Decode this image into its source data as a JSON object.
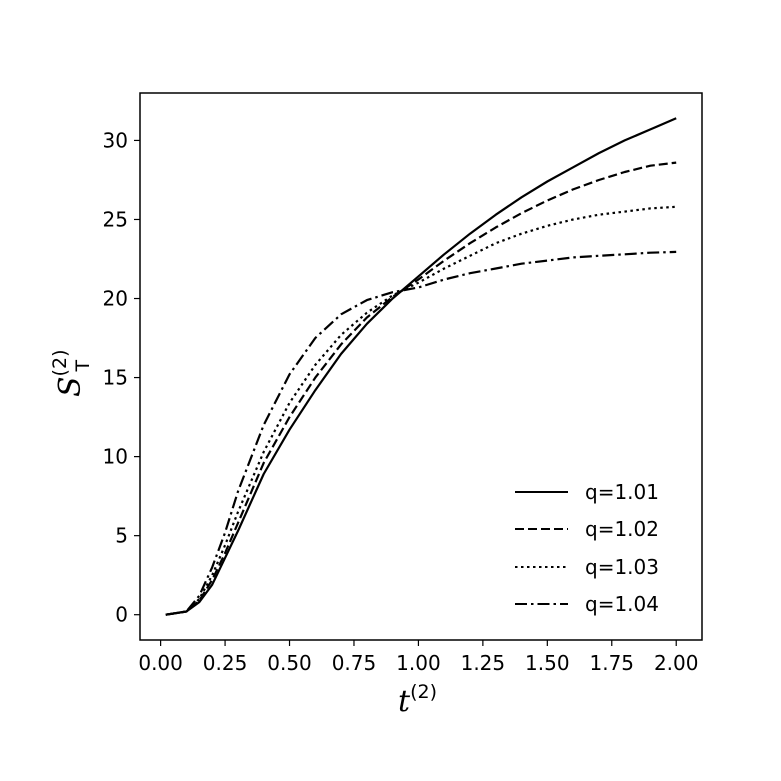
{
  "chart_data": {
    "type": "line",
    "xlabel": {
      "base": "t",
      "sup": "(2)"
    },
    "ylabel": {
      "base": "S",
      "sub": "T",
      "sup": "(2)"
    },
    "xlim": [
      -0.08,
      2.1
    ],
    "ylim": [
      -1.6,
      33.0
    ],
    "xticks": [
      "0.00",
      "0.25",
      "0.50",
      "0.75",
      "1.00",
      "1.25",
      "1.50",
      "1.75",
      "2.00"
    ],
    "yticks": [
      "0",
      "5",
      "10",
      "15",
      "20",
      "25",
      "30"
    ],
    "grid": false,
    "legend_position": "lower-right",
    "x": [
      0.02,
      0.1,
      0.15,
      0.2,
      0.25,
      0.3,
      0.4,
      0.5,
      0.6,
      0.7,
      0.8,
      0.9,
      1.0,
      1.1,
      1.2,
      1.3,
      1.4,
      1.5,
      1.6,
      1.7,
      1.8,
      1.9,
      2.0
    ],
    "series": [
      {
        "name": "q=1.01",
        "style": "solid",
        "values": [
          0.0,
          0.2,
          0.8,
          1.9,
          3.6,
          5.3,
          8.9,
          11.7,
          14.2,
          16.5,
          18.4,
          20.0,
          21.4,
          22.8,
          24.1,
          25.3,
          26.4,
          27.4,
          28.3,
          29.2,
          30.0,
          30.7,
          31.4
        ]
      },
      {
        "name": "q=1.02",
        "style": "dashed",
        "values": [
          0.0,
          0.2,
          0.9,
          2.2,
          3.9,
          5.8,
          9.6,
          12.5,
          15.0,
          17.1,
          18.8,
          20.1,
          21.2,
          22.4,
          23.5,
          24.5,
          25.4,
          26.2,
          26.9,
          27.5,
          28.0,
          28.4,
          28.6
        ]
      },
      {
        "name": "q=1.03",
        "style": "dotted",
        "values": [
          0.0,
          0.2,
          1.0,
          2.5,
          4.4,
          6.5,
          10.3,
          13.4,
          15.8,
          17.7,
          19.1,
          20.2,
          21.0,
          21.9,
          22.7,
          23.5,
          24.1,
          24.6,
          25.0,
          25.3,
          25.5,
          25.7,
          25.8
        ]
      },
      {
        "name": "q=1.04",
        "style": "dashdot",
        "values": [
          0.0,
          0.2,
          1.2,
          3.0,
          5.2,
          7.8,
          12.0,
          15.2,
          17.5,
          19.0,
          19.9,
          20.4,
          20.7,
          21.2,
          21.6,
          21.9,
          22.2,
          22.4,
          22.6,
          22.7,
          22.8,
          22.9,
          22.95
        ]
      }
    ]
  }
}
